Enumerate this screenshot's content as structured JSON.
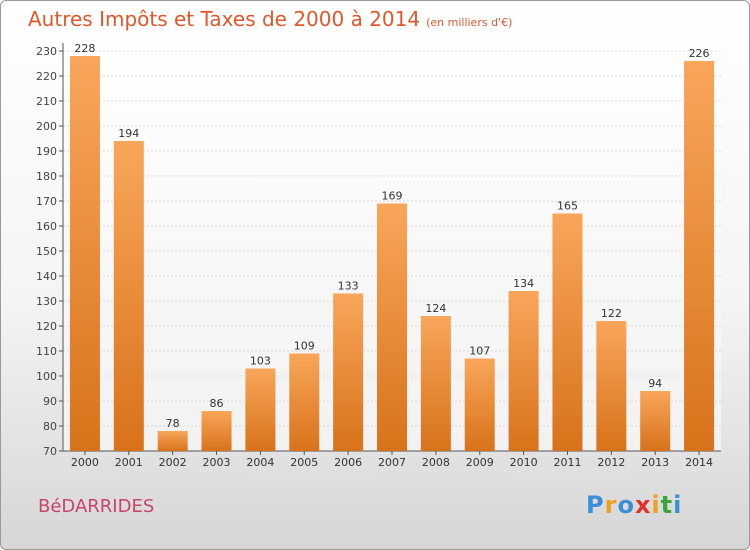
{
  "header": {
    "title": "Autres Impôts et Taxes de 2000 à 2014",
    "unit": "(en milliers d'€)"
  },
  "footer": {
    "town": "BéDARRIDES",
    "logo": "Proxiti"
  },
  "colors": {
    "bar": "#f08a2c",
    "bar_light": "#f9a65a",
    "bar_dark": "#d8721a",
    "title": "#e0572a",
    "town": "#c8456a"
  },
  "chart_data": {
    "type": "bar",
    "title": "Autres Impôts et Taxes de 2000 à 2014",
    "categories": [
      "2000",
      "2001",
      "2002",
      "2003",
      "2004",
      "2005",
      "2006",
      "2007",
      "2008",
      "2009",
      "2010",
      "2011",
      "2012",
      "2013",
      "2014"
    ],
    "values": [
      228,
      194,
      78,
      86,
      103,
      109,
      133,
      169,
      124,
      107,
      134,
      165,
      122,
      94,
      226
    ],
    "ylim": [
      70,
      230
    ],
    "yticks": [
      70,
      80,
      90,
      100,
      110,
      120,
      130,
      140,
      150,
      160,
      170,
      180,
      190,
      200,
      210,
      220,
      230
    ],
    "grid": true
  }
}
